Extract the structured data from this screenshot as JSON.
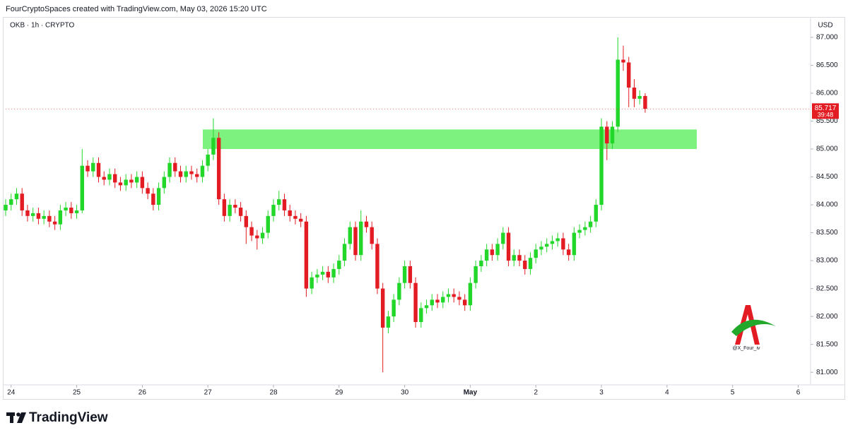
{
  "header": "FourCryptoSpaces created with TradingView.com, May 03, 2026 15:20 UTC",
  "brand": "TradingView",
  "watermark": "@X_Four_iv",
  "chart_data": {
    "type": "candlestick",
    "title": "OKB · 1h · CRYPTO",
    "currency": "USD",
    "up_color": "#22d72a",
    "down_color": "#e31b23",
    "open": [
      83.9,
      84.0,
      84.1,
      84.2,
      83.9,
      83.8,
      83.85,
      83.75,
      83.8,
      83.7,
      83.65,
      83.9,
      83.95,
      83.85,
      83.9,
      84.7,
      84.6,
      84.75,
      84.5,
      84.45,
      84.55,
      84.4,
      84.35,
      84.45,
      84.4,
      84.5,
      84.3,
      84.2,
      84.0,
      84.3,
      84.5,
      84.75,
      84.6,
      84.5,
      84.6,
      84.55,
      84.5,
      84.7,
      84.9,
      85.2,
      84.1,
      83.8,
      84.0,
      83.95,
      83.8,
      83.6,
      83.45,
      83.4,
      83.5,
      83.8,
      84.0,
      84.1,
      83.9,
      83.8,
      83.75,
      83.7,
      82.5,
      82.7,
      82.75,
      82.8,
      82.7,
      82.85,
      83.0,
      83.3,
      83.6,
      83.1,
      83.7,
      83.6,
      83.3,
      82.5,
      81.8,
      82.0,
      82.3,
      82.6,
      82.9,
      82.6,
      81.9,
      82.15,
      82.2,
      82.3,
      82.25,
      82.35,
      82.4,
      82.35,
      82.3,
      82.2,
      82.6,
      82.9,
      83.0,
      83.2,
      83.1,
      83.3,
      83.5,
      83.0,
      83.1,
      83.0,
      82.85,
      83.05,
      83.2,
      83.25,
      83.3,
      83.35,
      83.4,
      83.2,
      83.1,
      83.5,
      83.55,
      83.6,
      83.7,
      84.0,
      85.4,
      85.1,
      85.4,
      86.6,
      86.55,
      86.1,
      85.9,
      85.95
    ],
    "high": [
      84.1,
      84.2,
      84.3,
      84.3,
      84.0,
      83.95,
      83.95,
      83.9,
      83.9,
      83.8,
      84.0,
      84.05,
      84.05,
      84.0,
      85.0,
      84.8,
      84.85,
      84.85,
      84.6,
      84.65,
      84.65,
      84.5,
      84.55,
      84.55,
      84.6,
      84.6,
      84.4,
      84.3,
      84.4,
      84.6,
      84.85,
      84.85,
      84.7,
      84.7,
      84.7,
      84.65,
      84.8,
      85.0,
      85.55,
      85.3,
      84.2,
      84.1,
      84.1,
      84.05,
      83.9,
      83.7,
      83.55,
      83.6,
      83.9,
      84.1,
      84.25,
      84.2,
      84.0,
      83.9,
      83.85,
      83.8,
      82.8,
      82.85,
      82.9,
      82.9,
      82.95,
      83.1,
      83.4,
      83.7,
      83.7,
      83.9,
      83.8,
      83.7,
      83.4,
      82.6,
      82.1,
      82.4,
      82.7,
      83.0,
      83.0,
      82.7,
      82.25,
      82.3,
      82.4,
      82.4,
      82.45,
      82.5,
      82.5,
      82.45,
      82.4,
      82.7,
      83.0,
      83.1,
      83.3,
      83.3,
      83.4,
      83.6,
      83.6,
      83.2,
      83.2,
      83.1,
      83.15,
      83.3,
      83.35,
      83.4,
      83.45,
      83.5,
      83.5,
      83.3,
      83.6,
      83.65,
      83.7,
      83.8,
      84.1,
      85.55,
      85.5,
      85.5,
      87.0,
      86.85,
      86.65,
      86.25,
      86.05,
      86.0
    ],
    "low": [
      83.8,
      83.9,
      84.0,
      83.8,
      83.7,
      83.7,
      83.65,
      83.65,
      83.6,
      83.55,
      83.55,
      83.8,
      83.75,
      83.75,
      83.85,
      84.5,
      84.5,
      84.4,
      84.35,
      84.35,
      84.3,
      84.25,
      84.25,
      84.3,
      84.3,
      84.2,
      84.1,
      83.9,
      83.9,
      84.2,
      84.4,
      84.5,
      84.4,
      84.4,
      84.45,
      84.4,
      84.4,
      84.6,
      84.8,
      84.0,
      83.7,
      83.7,
      83.85,
      83.7,
      83.3,
      83.35,
      83.2,
      83.3,
      83.4,
      83.7,
      83.9,
      83.8,
      83.7,
      83.65,
      83.6,
      82.35,
      82.4,
      82.6,
      82.65,
      82.6,
      82.6,
      82.75,
      82.9,
      83.2,
      83.0,
      83.0,
      83.5,
      83.2,
      82.4,
      81.0,
      81.7,
      81.9,
      82.2,
      82.5,
      82.5,
      81.8,
      81.8,
      82.05,
      82.1,
      82.15,
      82.15,
      82.25,
      82.25,
      82.2,
      82.1,
      82.1,
      82.5,
      82.8,
      82.9,
      83.0,
      83.0,
      83.2,
      82.9,
      82.9,
      82.9,
      82.75,
      82.75,
      82.95,
      83.1,
      83.15,
      83.2,
      83.25,
      83.1,
      83.0,
      83.0,
      83.4,
      83.45,
      83.5,
      83.6,
      83.9,
      84.8,
      85.0,
      85.3,
      86.4,
      85.75,
      85.75,
      85.8,
      85.65
    ],
    "close": [
      84.0,
      84.1,
      84.2,
      83.9,
      83.8,
      83.85,
      83.75,
      83.8,
      83.7,
      83.65,
      83.9,
      83.95,
      83.85,
      83.9,
      84.7,
      84.6,
      84.75,
      84.5,
      84.45,
      84.55,
      84.4,
      84.35,
      84.45,
      84.4,
      84.5,
      84.3,
      84.2,
      84.0,
      84.3,
      84.5,
      84.75,
      84.6,
      84.5,
      84.6,
      84.55,
      84.5,
      84.7,
      84.9,
      85.2,
      84.1,
      83.8,
      84.0,
      83.95,
      83.8,
      83.6,
      83.45,
      83.4,
      83.5,
      83.8,
      84.0,
      84.1,
      83.9,
      83.8,
      83.75,
      83.7,
      82.5,
      82.7,
      82.75,
      82.8,
      82.7,
      82.85,
      83.0,
      83.3,
      83.6,
      83.1,
      83.7,
      83.6,
      83.3,
      82.5,
      81.8,
      82.0,
      82.3,
      82.6,
      82.9,
      82.6,
      81.9,
      82.15,
      82.2,
      82.3,
      82.25,
      82.35,
      82.4,
      82.35,
      82.3,
      82.2,
      82.6,
      82.9,
      83.0,
      83.2,
      83.1,
      83.3,
      83.5,
      83.0,
      83.1,
      83.0,
      82.85,
      83.05,
      83.2,
      83.25,
      83.3,
      83.35,
      83.4,
      83.2,
      83.1,
      83.5,
      83.55,
      83.6,
      83.7,
      84.0,
      85.4,
      85.1,
      85.4,
      86.6,
      86.55,
      86.1,
      85.9,
      85.95,
      85.72
    ],
    "zone": [
      85.0,
      85.35
    ],
    "zone_color": "#7ef27e",
    "last_price": 85.717,
    "countdown": "39:48",
    "xlim": [
      0,
      147
    ],
    "xticks": [
      {
        "value": 1,
        "label": "24"
      },
      {
        "value": 13,
        "label": "25"
      },
      {
        "value": 25,
        "label": "26"
      },
      {
        "value": 37,
        "label": "27"
      },
      {
        "value": 49,
        "label": "28"
      },
      {
        "value": 61,
        "label": "29"
      },
      {
        "value": 73,
        "label": "30"
      },
      {
        "value": 85,
        "label": "May"
      },
      {
        "value": 97,
        "label": "2"
      },
      {
        "value": 109,
        "label": "3"
      },
      {
        "value": 121,
        "label": "4"
      },
      {
        "value": 133,
        "label": "5"
      },
      {
        "value": 145,
        "label": "6"
      }
    ],
    "ylim": [
      80.8,
      87.1
    ],
    "yticks": [
      {
        "value": 81,
        "label": "81.000"
      },
      {
        "value": 81.5,
        "label": "81.500"
      },
      {
        "value": 82,
        "label": "82.000"
      },
      {
        "value": 82.5,
        "label": "82.500"
      },
      {
        "value": 83,
        "label": "83.000"
      },
      {
        "value": 83.5,
        "label": "83.500"
      },
      {
        "value": 84,
        "label": "84.000"
      },
      {
        "value": 84.5,
        "label": "84.500"
      },
      {
        "value": 85,
        "label": "85.000"
      },
      {
        "value": 85.5,
        "label": "85.500"
      },
      {
        "value": 86,
        "label": "86.000"
      },
      {
        "value": 86.5,
        "label": "86.500"
      },
      {
        "value": 87,
        "label": "87.000"
      }
    ]
  }
}
